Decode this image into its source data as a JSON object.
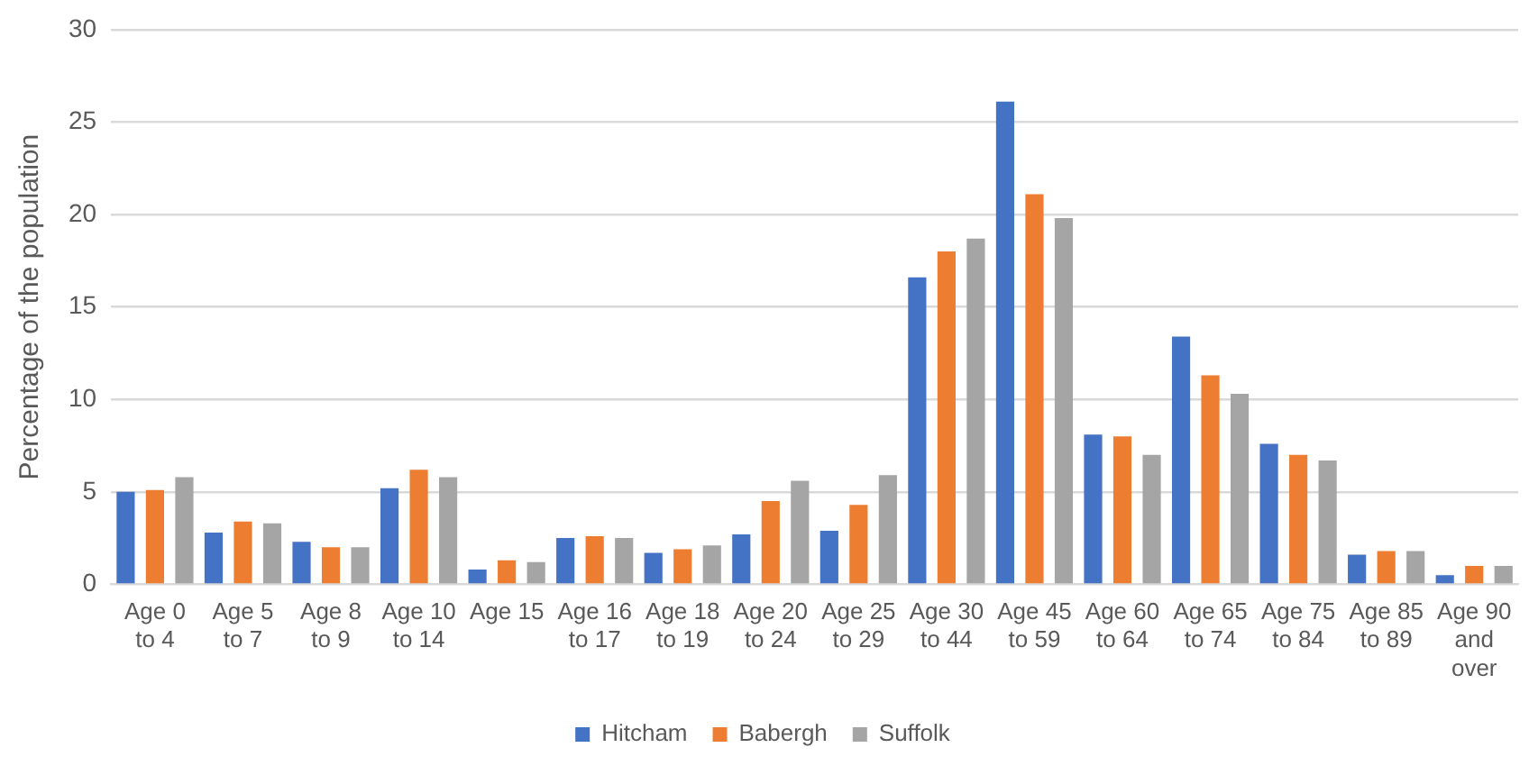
{
  "chart_data": {
    "type": "bar",
    "ylabel": "Percentage of the population",
    "categories": [
      "Age 0 to 4",
      "Age 5 to 7",
      "Age 8 to 9",
      "Age 10 to 14",
      "Age 15",
      "Age 16 to 17",
      "Age 18 to 19",
      "Age 20 to 24",
      "Age 25 to 29",
      "Age 30 to 44",
      "Age 45 to 59",
      "Age 60 to 64",
      "Age 65 to 74",
      "Age 75 to 84",
      "Age 85 to 89",
      "Age 90 and over"
    ],
    "series": [
      {
        "name": "Hitcham",
        "color": "#4472c4",
        "values": [
          5.0,
          2.8,
          2.3,
          5.2,
          0.8,
          2.5,
          1.7,
          2.7,
          2.9,
          16.6,
          26.1,
          8.1,
          13.4,
          7.6,
          1.6,
          0.5
        ]
      },
      {
        "name": "Babergh",
        "color": "#ed7d31",
        "values": [
          5.1,
          3.4,
          2.0,
          6.2,
          1.3,
          2.6,
          1.9,
          4.5,
          4.3,
          18.0,
          21.1,
          8.0,
          11.3,
          7.0,
          1.8,
          1.0
        ]
      },
      {
        "name": "Suffolk",
        "color": "#a5a5a5",
        "values": [
          5.8,
          3.3,
          2.0,
          5.8,
          1.2,
          2.5,
          2.1,
          5.6,
          5.9,
          18.7,
          19.8,
          7.0,
          10.3,
          6.7,
          1.8,
          1.0
        ]
      }
    ],
    "ylim": [
      0,
      30
    ],
    "yticks": [
      0,
      5,
      10,
      15,
      20,
      25,
      30
    ],
    "grid": "y",
    "legend": "bottom"
  }
}
